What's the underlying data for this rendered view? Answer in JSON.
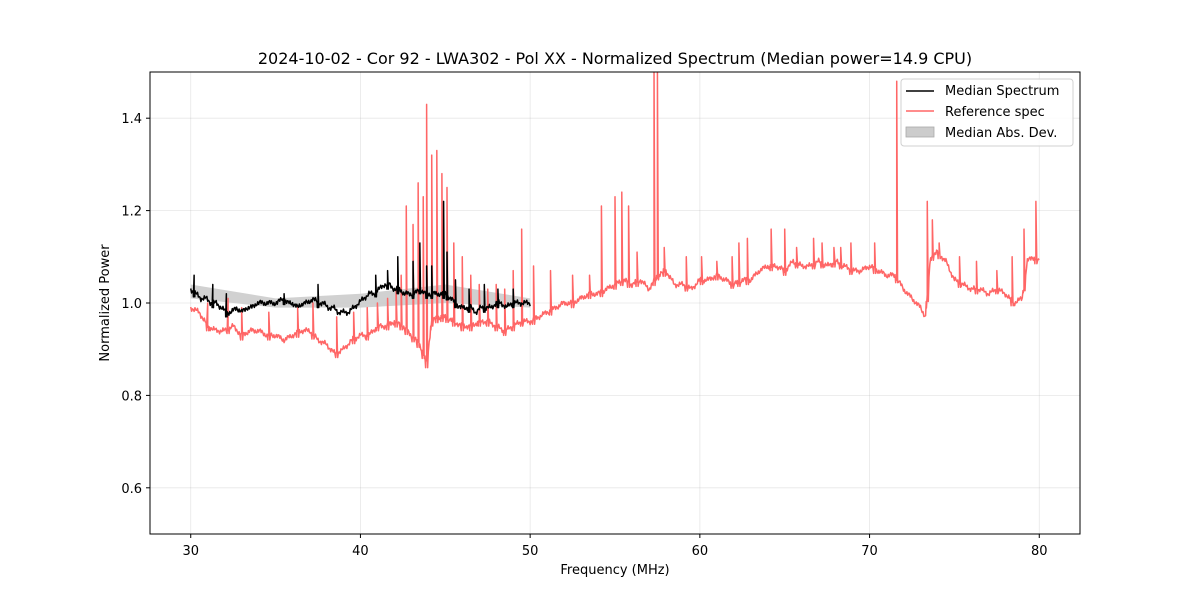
{
  "chart_data": {
    "type": "line",
    "title": "2024-10-02 - Cor 92 - LWA302 - Pol XX - Normalized Spectrum (Median power=14.9 CPU)",
    "xlabel": "Frequency (MHz)",
    "ylabel": "Normalized Power",
    "xlim": [
      27.6,
      82.4
    ],
    "ylim": [
      0.5,
      1.5
    ],
    "xticks": [
      30,
      40,
      50,
      60,
      70,
      80
    ],
    "yticks": [
      0.6,
      0.8,
      1.0,
      1.2,
      1.4
    ],
    "xtick_labels": [
      "30",
      "40",
      "50",
      "60",
      "70",
      "80"
    ],
    "ytick_labels": [
      "0.6",
      "0.8",
      "1.0",
      "1.2",
      "1.4"
    ],
    "grid": true,
    "legend_position": "top-right",
    "legend": [
      {
        "label": "Median Spectrum",
        "kind": "line",
        "color": "#000000"
      },
      {
        "label": "Reference spec",
        "kind": "line",
        "color": "#ff6666"
      },
      {
        "label": "Median Abs. Dev.",
        "kind": "patch",
        "color": "#cccccc"
      }
    ],
    "series": [
      {
        "name": "Reference spec",
        "color": "#ff6666",
        "x": [
          30.0,
          30.5,
          31.0,
          31.5,
          32.0,
          32.5,
          33.0,
          33.5,
          34.0,
          34.5,
          35.0,
          35.5,
          36.0,
          36.5,
          37.0,
          37.5,
          38.0,
          38.5,
          39.0,
          39.5,
          40.0,
          40.5,
          41.0,
          41.5,
          42.0,
          42.5,
          43.0,
          43.5,
          43.9,
          44.2,
          44.6,
          45.0,
          45.5,
          46.0,
          46.5,
          47.0,
          47.5,
          48.0,
          48.5,
          49.0,
          49.5,
          50.0,
          50.5,
          51.0,
          51.5,
          52.0,
          52.5,
          53.0,
          53.5,
          54.0,
          54.5,
          55.0,
          55.5,
          56.0,
          56.5,
          57.0,
          57.5,
          58.0,
          58.5,
          59.0,
          59.5,
          60.0,
          60.5,
          61.0,
          61.5,
          62.0,
          62.5,
          63.0,
          63.5,
          64.0,
          64.5,
          65.0,
          65.5,
          66.0,
          66.5,
          67.0,
          67.5,
          68.0,
          68.5,
          69.0,
          69.5,
          70.0,
          70.5,
          71.0,
          71.5,
          72.0,
          72.5,
          73.0,
          73.3,
          73.6,
          74.0,
          74.5,
          75.0,
          75.5,
          76.0,
          76.5,
          77.0,
          77.5,
          78.0,
          78.5,
          79.0,
          79.3,
          79.6,
          80.0
        ],
        "values": [
          0.99,
          0.98,
          0.95,
          0.94,
          0.94,
          0.95,
          0.93,
          0.94,
          0.94,
          0.93,
          0.93,
          0.92,
          0.93,
          0.94,
          0.94,
          0.92,
          0.91,
          0.89,
          0.9,
          0.92,
          0.93,
          0.93,
          0.95,
          0.95,
          0.96,
          0.95,
          0.93,
          0.91,
          0.87,
          0.96,
          0.97,
          0.97,
          0.96,
          0.95,
          0.95,
          0.96,
          0.96,
          0.95,
          0.94,
          0.95,
          0.96,
          0.96,
          0.97,
          0.98,
          0.99,
          1.0,
          1.0,
          1.01,
          1.02,
          1.02,
          1.03,
          1.04,
          1.05,
          1.04,
          1.05,
          1.03,
          1.06,
          1.07,
          1.04,
          1.04,
          1.03,
          1.05,
          1.05,
          1.06,
          1.05,
          1.04,
          1.05,
          1.05,
          1.07,
          1.08,
          1.08,
          1.07,
          1.09,
          1.08,
          1.08,
          1.09,
          1.08,
          1.09,
          1.08,
          1.07,
          1.07,
          1.08,
          1.07,
          1.06,
          1.06,
          1.03,
          1.01,
          0.99,
          0.97,
          1.1,
          1.11,
          1.09,
          1.05,
          1.04,
          1.03,
          1.03,
          1.02,
          1.03,
          1.02,
          1.0,
          1.01,
          1.09,
          1.1,
          1.09
        ],
        "spikes": [
          {
            "x": 31.0,
            "y": 1.0
          },
          {
            "x": 32.2,
            "y": 1.01
          },
          {
            "x": 33.0,
            "y": 0.99
          },
          {
            "x": 34.6,
            "y": 0.98
          },
          {
            "x": 36.3,
            "y": 0.99
          },
          {
            "x": 37.2,
            "y": 1.0
          },
          {
            "x": 38.6,
            "y": 0.97
          },
          {
            "x": 39.6,
            "y": 0.98
          },
          {
            "x": 40.4,
            "y": 0.99
          },
          {
            "x": 41.0,
            "y": 1.0
          },
          {
            "x": 41.6,
            "y": 1.01
          },
          {
            "x": 42.1,
            "y": 1.03
          },
          {
            "x": 42.4,
            "y": 1.06
          },
          {
            "x": 42.7,
            "y": 1.21
          },
          {
            "x": 43.1,
            "y": 1.17
          },
          {
            "x": 43.4,
            "y": 1.26
          },
          {
            "x": 43.7,
            "y": 1.23
          },
          {
            "x": 43.9,
            "y": 1.43
          },
          {
            "x": 44.2,
            "y": 1.32
          },
          {
            "x": 44.5,
            "y": 1.33
          },
          {
            "x": 44.8,
            "y": 1.28
          },
          {
            "x": 45.1,
            "y": 1.25
          },
          {
            "x": 45.5,
            "y": 1.13
          },
          {
            "x": 46.0,
            "y": 1.1
          },
          {
            "x": 46.5,
            "y": 1.06
          },
          {
            "x": 47.0,
            "y": 1.04
          },
          {
            "x": 47.5,
            "y": 1.03
          },
          {
            "x": 48.0,
            "y": 1.04
          },
          {
            "x": 48.5,
            "y": 1.03
          },
          {
            "x": 49.0,
            "y": 1.07
          },
          {
            "x": 49.5,
            "y": 1.16
          },
          {
            "x": 50.2,
            "y": 1.08
          },
          {
            "x": 51.2,
            "y": 1.07
          },
          {
            "x": 52.5,
            "y": 1.06
          },
          {
            "x": 53.5,
            "y": 1.06
          },
          {
            "x": 54.2,
            "y": 1.21
          },
          {
            "x": 55.0,
            "y": 1.23
          },
          {
            "x": 55.4,
            "y": 1.24
          },
          {
            "x": 55.8,
            "y": 1.21
          },
          {
            "x": 56.3,
            "y": 1.11
          },
          {
            "x": 57.3,
            "y": 1.5
          },
          {
            "x": 57.5,
            "y": 1.5
          },
          {
            "x": 57.9,
            "y": 1.12
          },
          {
            "x": 59.2,
            "y": 1.1
          },
          {
            "x": 60.1,
            "y": 1.1
          },
          {
            "x": 61.0,
            "y": 1.09
          },
          {
            "x": 61.9,
            "y": 1.1
          },
          {
            "x": 62.3,
            "y": 1.13
          },
          {
            "x": 62.8,
            "y": 1.14
          },
          {
            "x": 64.2,
            "y": 1.16
          },
          {
            "x": 65.0,
            "y": 1.16
          },
          {
            "x": 65.7,
            "y": 1.12
          },
          {
            "x": 66.7,
            "y": 1.14
          },
          {
            "x": 67.2,
            "y": 1.13
          },
          {
            "x": 67.9,
            "y": 1.12
          },
          {
            "x": 68.3,
            "y": 1.12
          },
          {
            "x": 68.9,
            "y": 1.13
          },
          {
            "x": 70.3,
            "y": 1.13
          },
          {
            "x": 71.6,
            "y": 1.48
          },
          {
            "x": 73.4,
            "y": 1.22
          },
          {
            "x": 73.7,
            "y": 1.18
          },
          {
            "x": 74.1,
            "y": 1.13
          },
          {
            "x": 75.3,
            "y": 1.1
          },
          {
            "x": 76.3,
            "y": 1.09
          },
          {
            "x": 77.5,
            "y": 1.07
          },
          {
            "x": 78.4,
            "y": 1.1
          },
          {
            "x": 79.1,
            "y": 1.16
          },
          {
            "x": 79.8,
            "y": 1.22
          }
        ]
      },
      {
        "name": "Median Spectrum",
        "color": "#000000",
        "x": [
          30.0,
          30.3,
          30.6,
          30.9,
          31.2,
          31.5,
          31.8,
          32.1,
          32.4,
          32.7,
          33.0,
          33.3,
          33.6,
          33.9,
          34.2,
          34.5,
          34.8,
          35.1,
          35.4,
          35.7,
          36.0,
          36.3,
          36.6,
          36.9,
          37.2,
          37.5,
          37.8,
          38.1,
          38.4,
          38.7,
          39.0,
          39.3,
          39.6,
          39.9,
          40.2,
          40.5,
          40.8,
          41.1,
          41.4,
          41.7,
          42.0,
          42.3,
          42.6,
          42.9,
          43.2,
          43.5,
          43.8,
          44.1,
          44.4,
          44.7,
          45.0,
          45.3,
          45.6,
          45.9,
          46.2,
          46.5,
          46.8,
          47.1,
          47.4,
          47.7,
          48.0,
          48.3,
          48.6,
          48.9,
          49.2,
          49.5,
          49.8,
          50.0
        ],
        "values": [
          1.03,
          1.02,
          1.01,
          1.01,
          1.0,
          1.0,
          0.99,
          0.98,
          0.98,
          0.99,
          0.98,
          0.99,
          0.99,
          1.0,
          1.0,
          1.0,
          1.0,
          1.0,
          1.01,
          1.0,
          1.0,
          0.99,
          1.0,
          1.0,
          1.01,
          1.0,
          1.0,
          0.99,
          0.99,
          0.98,
          0.98,
          0.98,
          0.99,
          1.0,
          1.01,
          1.02,
          1.02,
          1.03,
          1.04,
          1.04,
          1.03,
          1.03,
          1.02,
          1.02,
          1.02,
          1.03,
          1.02,
          1.02,
          1.02,
          1.02,
          1.02,
          1.01,
          1.0,
          0.99,
          0.99,
          0.99,
          0.98,
          0.99,
          0.99,
          0.99,
          1.0,
          1.0,
          0.99,
          1.0,
          1.0,
          1.0,
          1.0,
          1.0
        ],
        "spikes": [
          {
            "x": 30.2,
            "y": 1.06
          },
          {
            "x": 31.3,
            "y": 1.04
          },
          {
            "x": 32.1,
            "y": 1.02
          },
          {
            "x": 35.5,
            "y": 1.02
          },
          {
            "x": 37.5,
            "y": 1.04
          },
          {
            "x": 40.9,
            "y": 1.06
          },
          {
            "x": 41.6,
            "y": 1.07
          },
          {
            "x": 42.2,
            "y": 1.1
          },
          {
            "x": 43.1,
            "y": 1.09
          },
          {
            "x": 43.5,
            "y": 1.13
          },
          {
            "x": 43.9,
            "y": 1.08
          },
          {
            "x": 44.2,
            "y": 1.08
          },
          {
            "x": 44.9,
            "y": 1.22
          },
          {
            "x": 45.1,
            "y": 1.11
          },
          {
            "x": 45.6,
            "y": 1.05
          },
          {
            "x": 46.4,
            "y": 1.03
          },
          {
            "x": 47.3,
            "y": 1.04
          },
          {
            "x": 48.1,
            "y": 1.03
          },
          {
            "x": 49.0,
            "y": 1.03
          }
        ]
      },
      {
        "name": "Median Abs. Dev.",
        "color": "#cccccc",
        "x": [
          30.0,
          35.0,
          40.0,
          45.0,
          50.0
        ],
        "lower": [
          1.01,
          0.99,
          0.99,
          1.0,
          0.99
        ],
        "upper": [
          1.04,
          1.01,
          1.02,
          1.04,
          1.01
        ]
      }
    ]
  }
}
